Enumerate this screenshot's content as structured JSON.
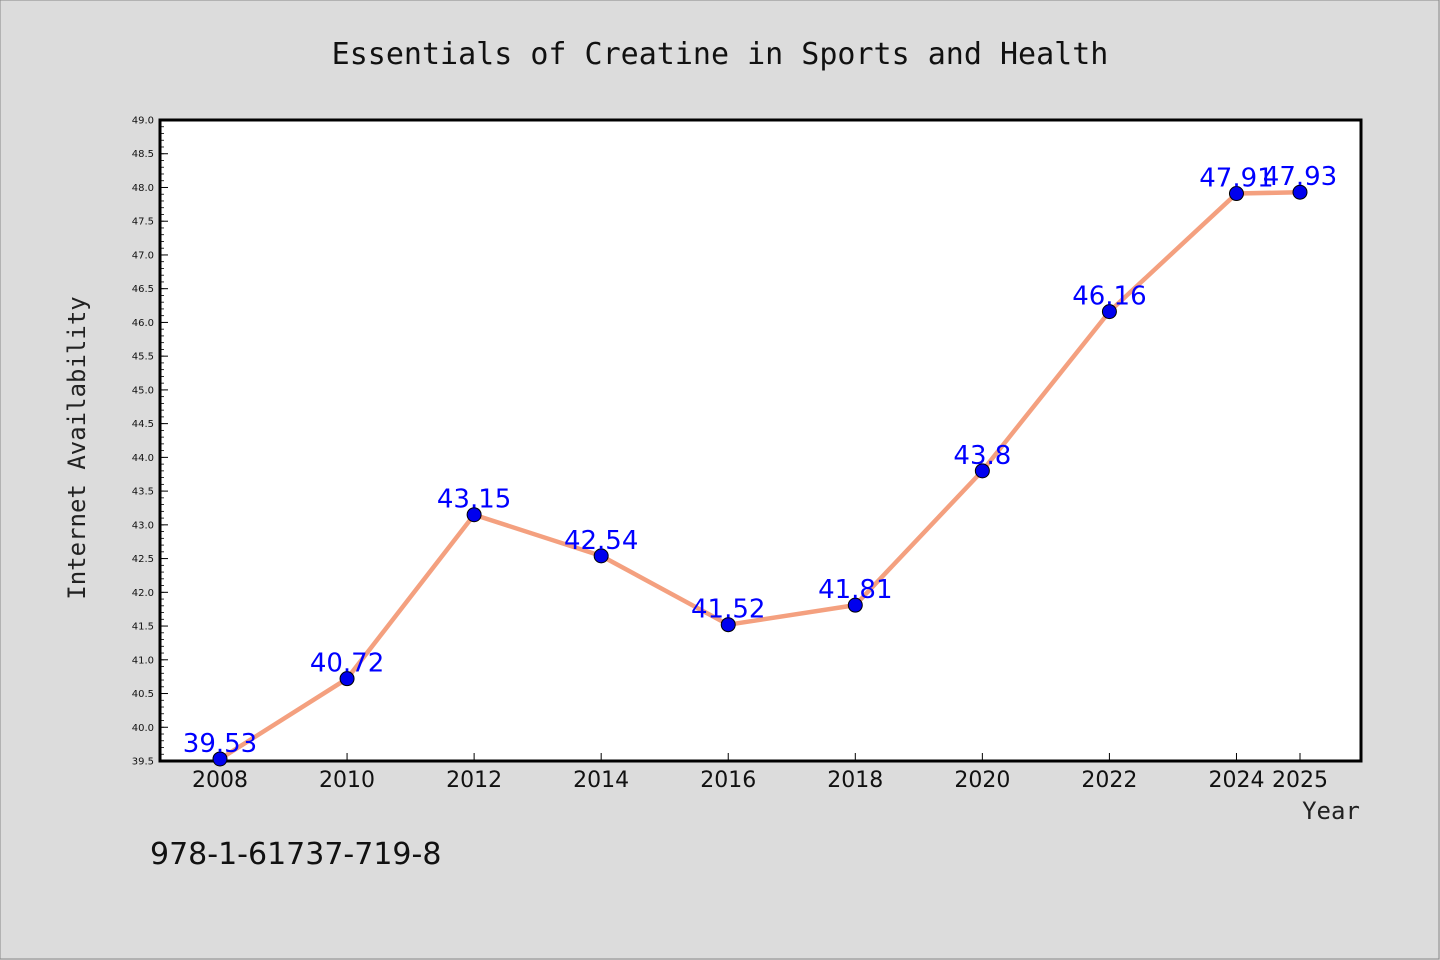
{
  "note": "978-1-61737-719-8",
  "chart_data": {
    "type": "line",
    "title": "Essentials of Creatine in Sports and Health",
    "xlabel": "Year",
    "ylabel": "Internet Availability",
    "categories": [
      "2008",
      "2010",
      "2012",
      "2014",
      "2016",
      "2018",
      "2020",
      "2022",
      "2024",
      "2025"
    ],
    "values": [
      39.53,
      40.72,
      43.15,
      42.54,
      41.52,
      41.81,
      43.8,
      46.16,
      47.91,
      47.93
    ],
    "data_labels": [
      "39.53",
      "40.72",
      "43.15",
      "42.54",
      "41.52",
      "41.81",
      "43.8",
      "46.16",
      "47.91",
      "47.93"
    ],
    "ylim": [
      39.5,
      49.0
    ],
    "yticks": [
      "39.5",
      "40.0",
      "40.5",
      "41.0",
      "41.5",
      "42.0",
      "42.5",
      "43.0",
      "43.5",
      "44.0",
      "44.5",
      "45.0",
      "45.5",
      "46.0",
      "46.5",
      "47.0",
      "47.5",
      "48.0",
      "48.5",
      "49.0"
    ],
    "line_color": "#f4a07f",
    "marker_color": "#0000ee",
    "label_color": "#0000ff",
    "grid": false,
    "legend": "none"
  }
}
